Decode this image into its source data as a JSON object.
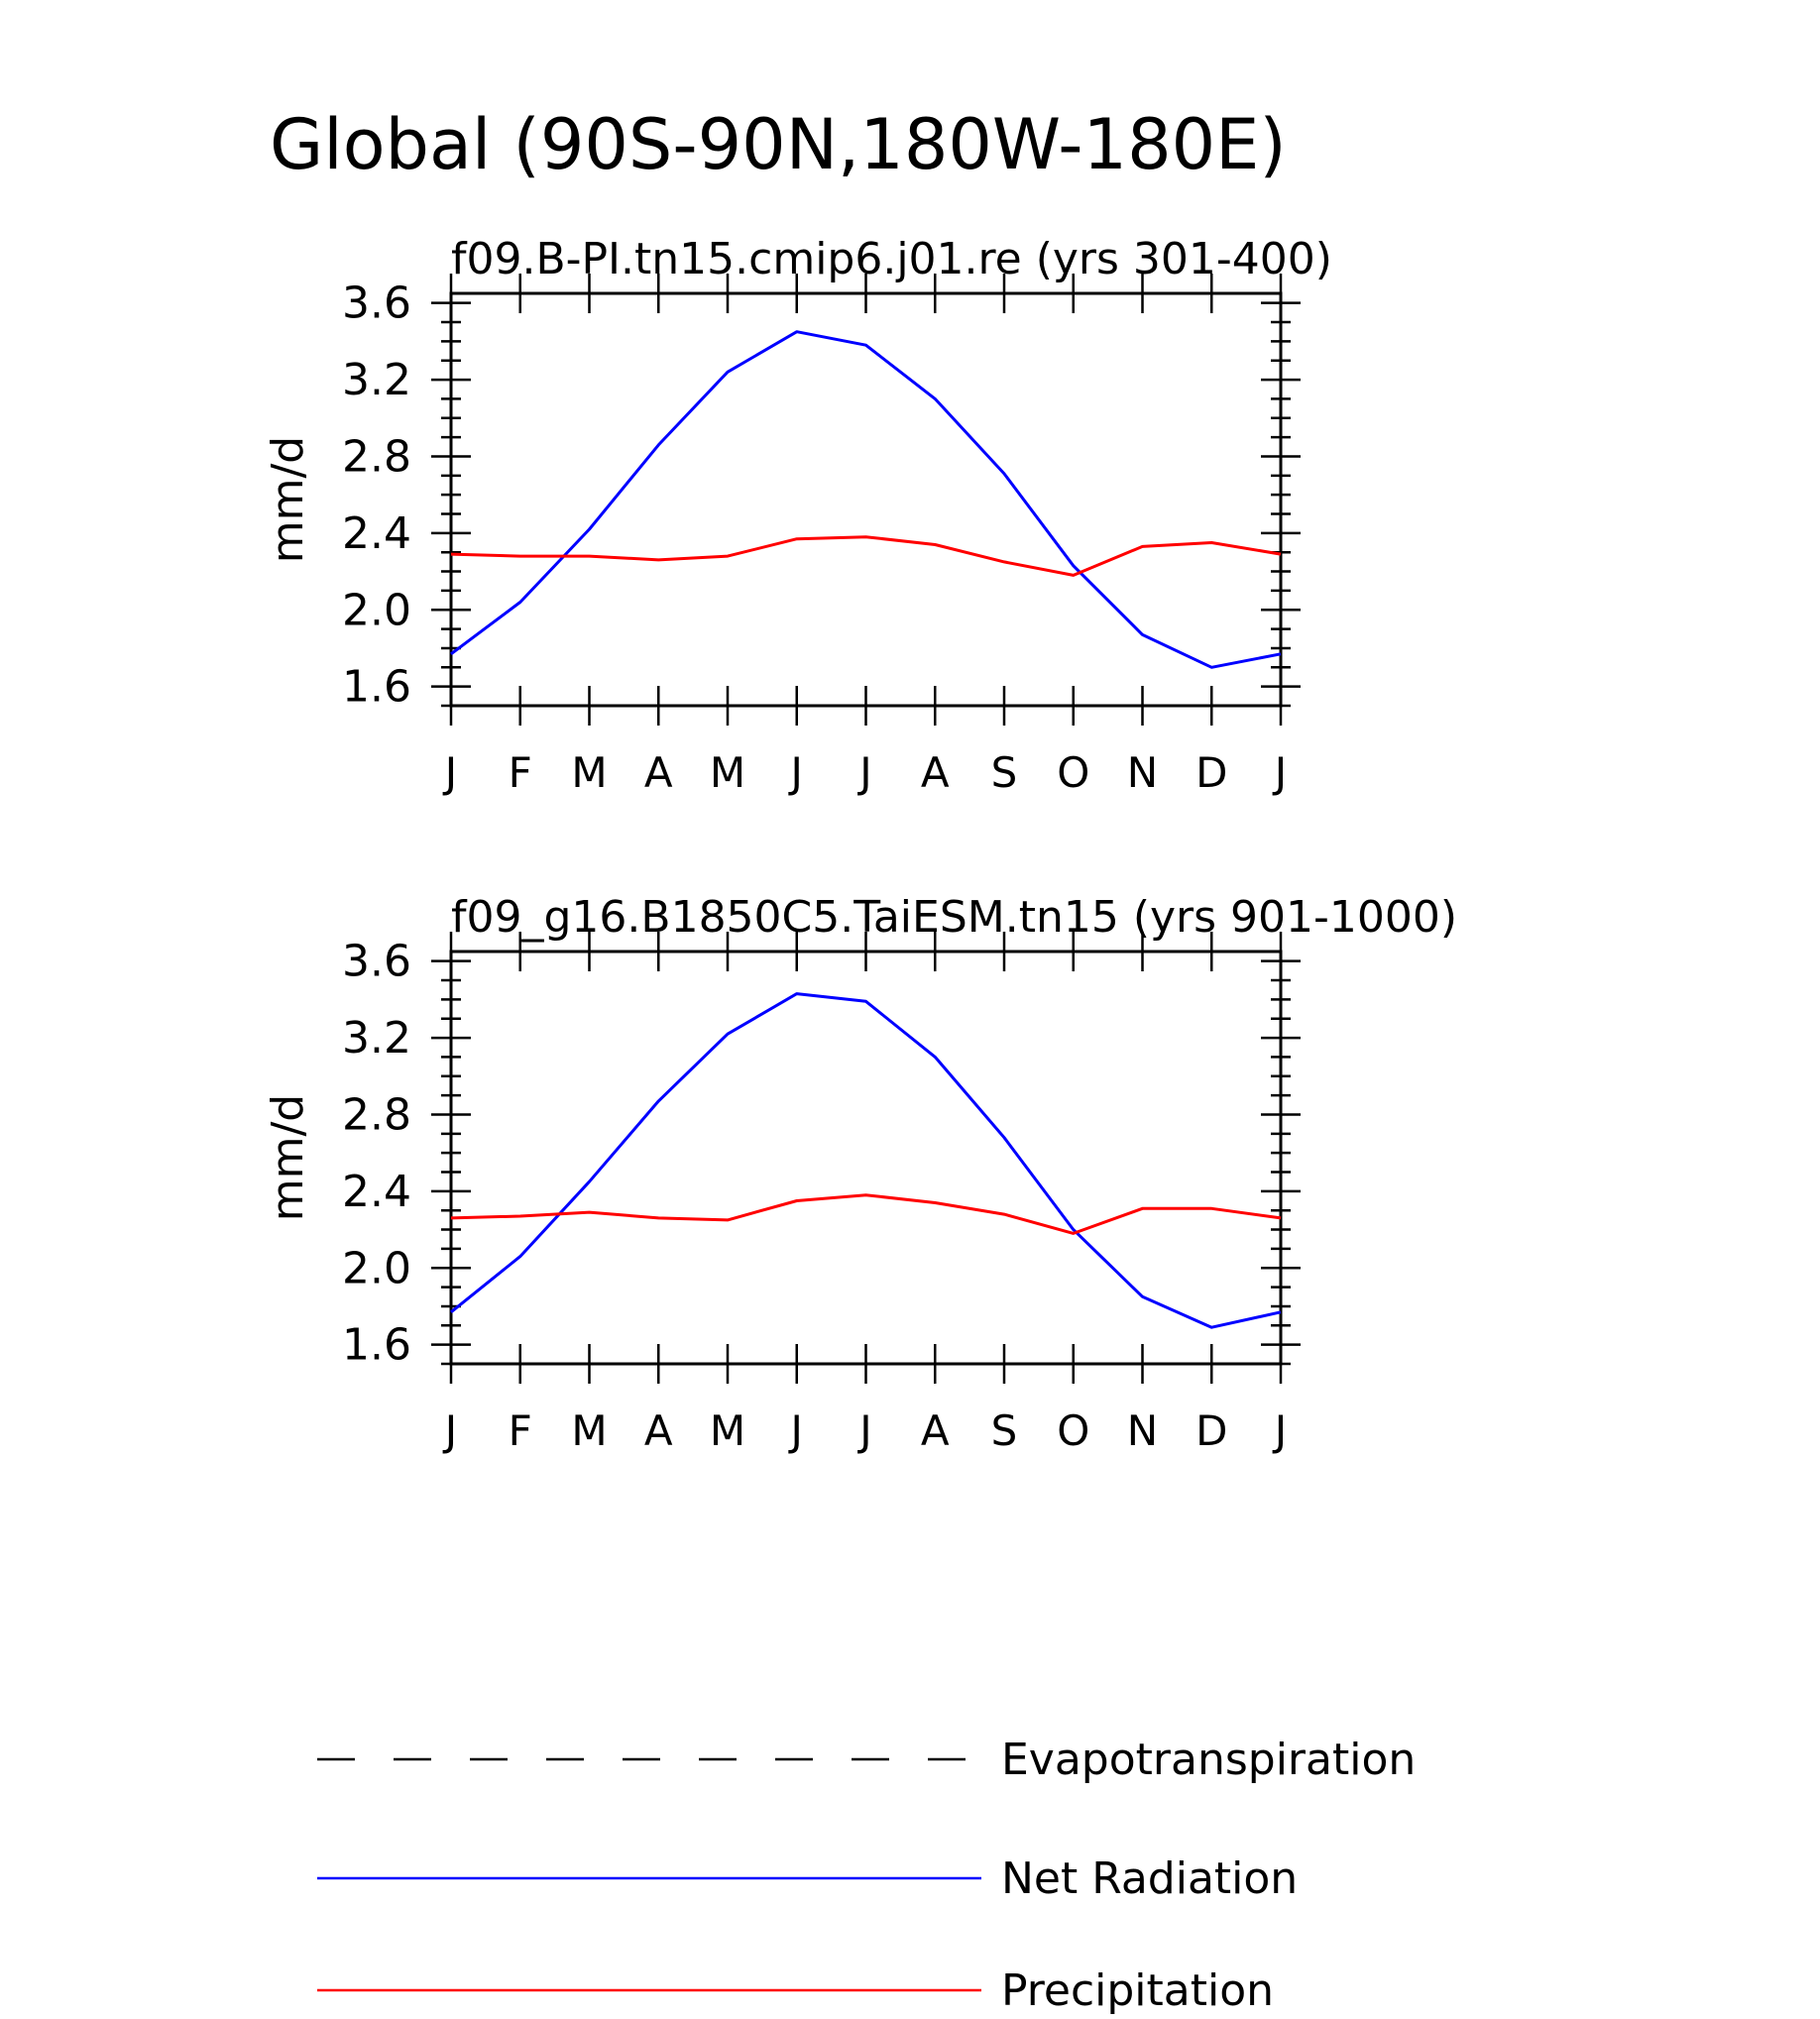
{
  "page_title": "Global (90S-90N,180W-180E)",
  "colors": {
    "net_radiation": "#0000ff",
    "precipitation": "#ff0000",
    "evapotranspiration": "#000000",
    "axes": "#000000"
  },
  "legend": {
    "items": [
      {
        "label": "Evapotranspiration",
        "style": "dashed",
        "color": "#000000"
      },
      {
        "label": "Net Radiation",
        "style": "solid",
        "color": "#0000ff"
      },
      {
        "label": "Precipitation",
        "style": "solid",
        "color": "#ff0000"
      }
    ]
  },
  "chart_data": [
    {
      "type": "line",
      "title": "f09.B-PI.tn15.cmip6.j01.re (yrs 301-400)",
      "xlabel": "",
      "ylabel": "mm/d",
      "categories": [
        "J",
        "F",
        "M",
        "A",
        "M",
        "J",
        "J",
        "A",
        "S",
        "O",
        "N",
        "D",
        "J"
      ],
      "ylim": [
        1.5,
        3.65
      ],
      "yticks": [
        "1.6",
        "2.0",
        "2.4",
        "2.8",
        "3.2",
        "3.6"
      ],
      "grid": false,
      "series": [
        {
          "name": "Net Radiation",
          "color": "#0000ff",
          "values": [
            1.77,
            2.04,
            2.42,
            2.86,
            3.24,
            3.45,
            3.38,
            3.1,
            2.71,
            2.23,
            1.87,
            1.7,
            1.77
          ]
        },
        {
          "name": "Precipitation",
          "color": "#ff0000",
          "values": [
            2.29,
            2.28,
            2.28,
            2.26,
            2.28,
            2.37,
            2.38,
            2.34,
            2.25,
            2.18,
            2.33,
            2.35,
            2.29
          ]
        }
      ]
    },
    {
      "type": "line",
      "title": "f09_g16.B1850C5.TaiESM.tn15 (yrs 901-1000)",
      "xlabel": "",
      "ylabel": "mm/d",
      "categories": [
        "J",
        "F",
        "M",
        "A",
        "M",
        "J",
        "J",
        "A",
        "S",
        "O",
        "N",
        "D",
        "J"
      ],
      "ylim": [
        1.5,
        3.65
      ],
      "yticks": [
        "1.6",
        "2.0",
        "2.4",
        "2.8",
        "3.2",
        "3.6"
      ],
      "grid": false,
      "series": [
        {
          "name": "Net Radiation",
          "color": "#0000ff",
          "values": [
            1.77,
            2.06,
            2.45,
            2.87,
            3.22,
            3.43,
            3.39,
            3.1,
            2.68,
            2.2,
            1.85,
            1.69,
            1.77
          ]
        },
        {
          "name": "Precipitation",
          "color": "#ff0000",
          "values": [
            2.26,
            2.27,
            2.29,
            2.26,
            2.25,
            2.35,
            2.38,
            2.34,
            2.28,
            2.18,
            2.31,
            2.31,
            2.26
          ]
        }
      ]
    }
  ]
}
